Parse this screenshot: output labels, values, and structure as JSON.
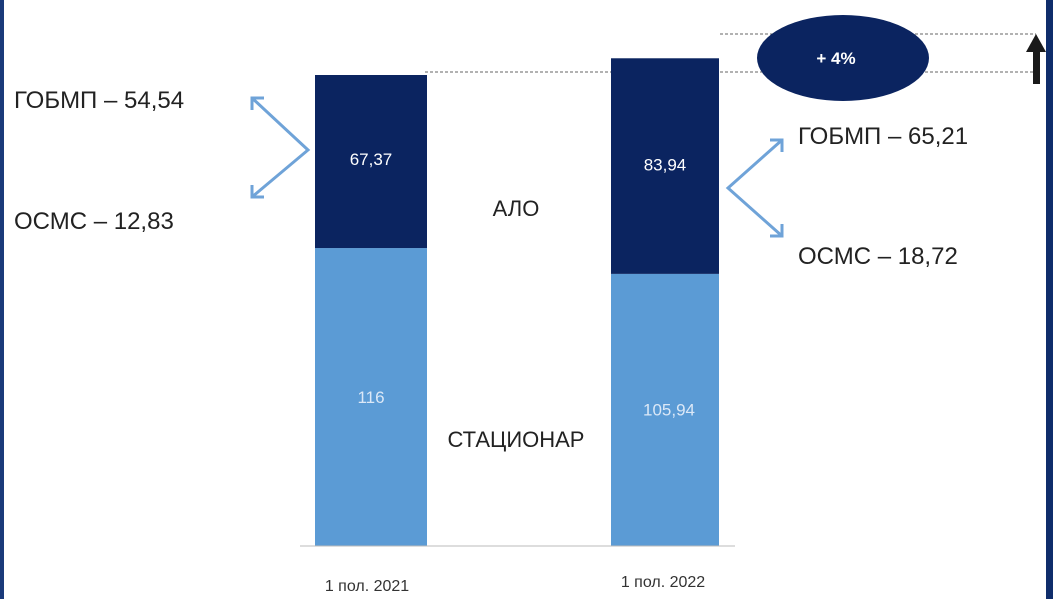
{
  "chart_data": {
    "type": "bar",
    "stacked": true,
    "categories": [
      "1 пол. 2021",
      "1 пол. 2022"
    ],
    "series": [
      {
        "name": "СТАЦИОНАР",
        "values": [
          116,
          105.94
        ],
        "value_labels": [
          "116",
          "105,94"
        ],
        "color": "#5b9bd5"
      },
      {
        "name": "АЛО",
        "values": [
          67.37,
          83.94
        ],
        "value_labels": [
          "67,37",
          "83,94"
        ],
        "color": "#0b2460"
      }
    ],
    "annotations": {
      "left_top": "ГОБМП – 54,54",
      "left_bottom": "ОСМС – 12,83",
      "right_top": "ГОБМП – 65,21",
      "right_bottom": "ОСМС – 18,72",
      "growth": "+ 4%"
    },
    "ylim": [
      0,
      190
    ],
    "title": "",
    "xlabel": "",
    "ylabel": ""
  },
  "colors": {
    "arrow": "#6fa3d8",
    "ellipse": "#0b2460",
    "text": "#222222",
    "dashed": "#666666",
    "frame": "#0f2d6b"
  }
}
